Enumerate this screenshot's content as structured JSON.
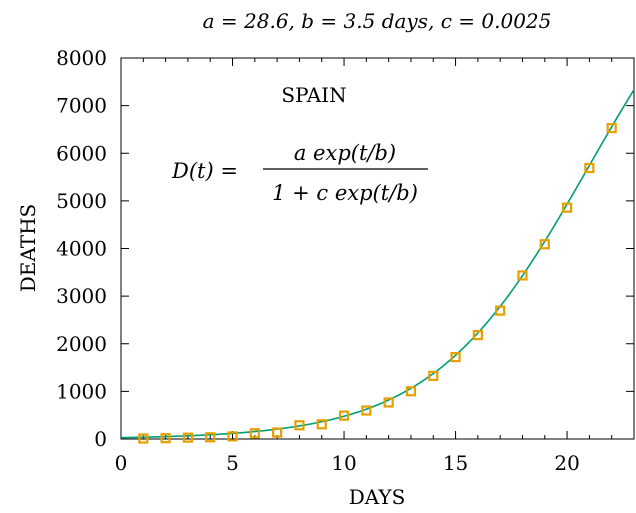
{
  "chart_data": {
    "type": "scatter",
    "title": "a = 28.6, b = 3.5 days, c = 0.0025",
    "xlabel": "DAYS",
    "ylabel": "DEATHS",
    "xlim": [
      0,
      23
    ],
    "ylim": [
      0,
      8000
    ],
    "x_ticks": [
      0,
      5,
      10,
      15,
      20
    ],
    "y_ticks": [
      0,
      1000,
      2000,
      3000,
      4000,
      5000,
      6000,
      7000,
      8000
    ],
    "grid": false,
    "annotations": {
      "country": "SPAIN",
      "formula_lhs": "D(t) =",
      "formula_numerator": "a exp(t/b)",
      "formula_denominator": "1 + c exp(t/b)"
    },
    "fit_params": {
      "a": 28.6,
      "b": 3.5,
      "c": 0.0025
    },
    "series": [
      {
        "marker": "square",
        "x": [
          1,
          2,
          3,
          4,
          5,
          6,
          7,
          8,
          9,
          10,
          11,
          12,
          13,
          14,
          15,
          16,
          17,
          18,
          19,
          20,
          21,
          22
        ],
        "y": [
          10,
          17,
          28,
          36,
          55,
          120,
          136,
          288,
          309,
          491,
          598,
          767,
          1002,
          1326,
          1720,
          2182,
          2696,
          3434,
          4089,
          4858,
          5690,
          6528
        ]
      },
      {
        "type": "line",
        "x_range": [
          0,
          23
        ]
      }
    ],
    "colors": {
      "marker": "#E69F00",
      "fit_line": "#009E73",
      "axis": "#000000"
    }
  }
}
